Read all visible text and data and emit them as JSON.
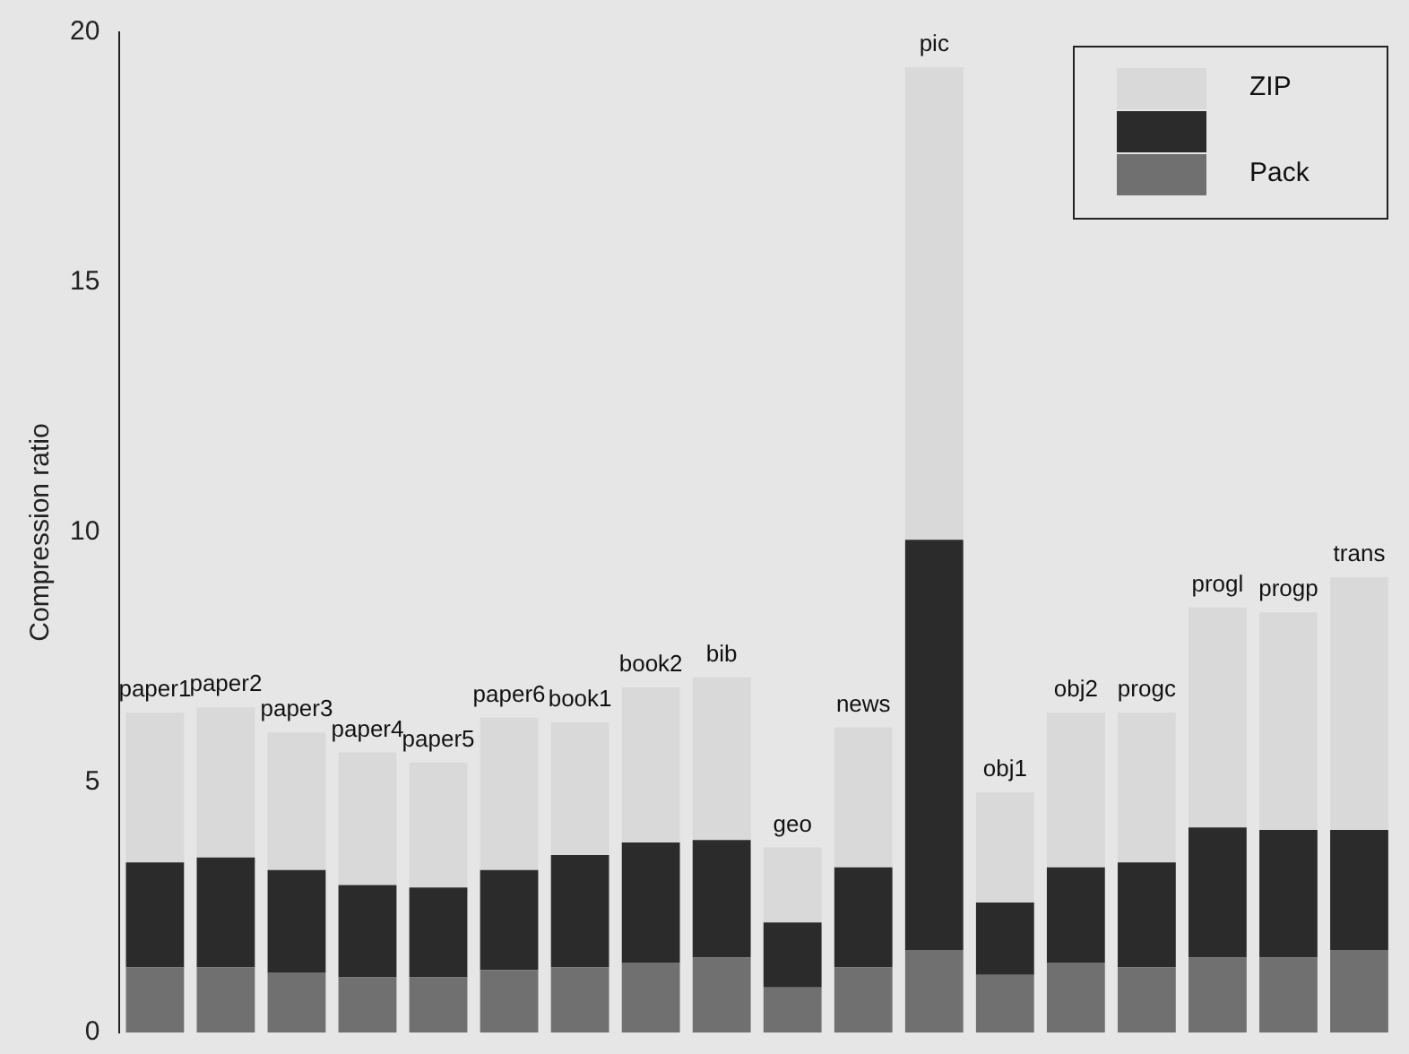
{
  "chart_data": {
    "type": "bar",
    "stacked": true,
    "ylabel": "Compression ratio",
    "categories": [
      "paper1",
      "paper2",
      "paper3",
      "paper4",
      "paper5",
      "paper6",
      "book1",
      "book2",
      "bib",
      "geo",
      "news",
      "pic",
      "obj1",
      "obj2",
      "progc",
      "progl",
      "progp",
      "trans"
    ],
    "series": [
      {
        "name": "Pack",
        "color": "#707070",
        "values": [
          1.3,
          1.3,
          1.2,
          1.1,
          1.1,
          1.25,
          1.3,
          1.4,
          1.5,
          0.9,
          1.3,
          1.65,
          1.15,
          1.4,
          1.3,
          1.5,
          1.5,
          1.65
        ]
      },
      {
        "color": "#2b2b2b",
        "values": [
          2.1,
          2.2,
          2.05,
          1.85,
          1.8,
          2.0,
          2.25,
          2.4,
          2.35,
          1.3,
          2.0,
          8.2,
          1.45,
          1.9,
          2.1,
          2.6,
          2.55,
          2.4
        ]
      },
      {
        "name": "ZIP",
        "color": "#d9d9d9",
        "values": [
          3.0,
          3.0,
          2.75,
          2.65,
          2.5,
          3.05,
          2.65,
          3.1,
          3.25,
          1.5,
          2.8,
          9.45,
          2.2,
          3.1,
          3.0,
          4.4,
          4.35,
          5.05
        ]
      }
    ],
    "ylim": [
      0,
      20
    ],
    "yticks": [
      0,
      5,
      10,
      15,
      20
    ],
    "grid": false,
    "legend": "top right"
  }
}
